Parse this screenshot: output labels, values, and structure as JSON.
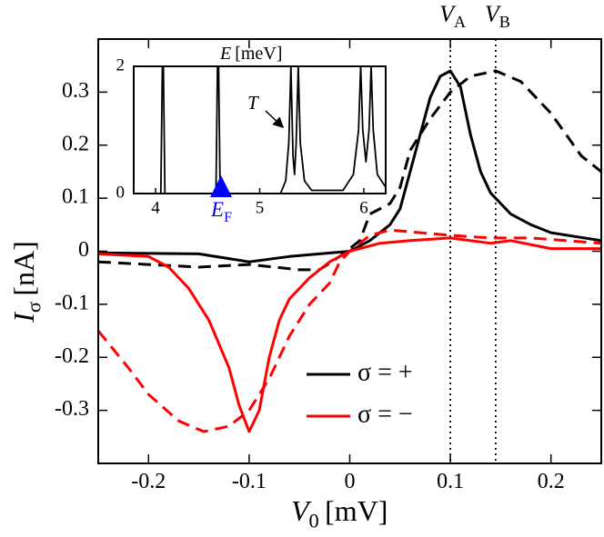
{
  "chart_data": [
    {
      "type": "line",
      "xlabel": {
        "symbol": "V",
        "sub": "0",
        "unit": "[mV]"
      },
      "ylabel": {
        "symbol": "I",
        "sub": "σ",
        "unit": "[nA]"
      },
      "xlim": [
        -0.25,
        0.25
      ],
      "ylim": [
        -0.4,
        0.4
      ],
      "xticks": [
        -0.2,
        -0.1,
        0,
        0.1,
        0.2
      ],
      "yticks": [
        -0.3,
        -0.2,
        -0.1,
        0,
        0.1,
        0.2,
        0.3
      ],
      "legend": "lower center",
      "vlines": [
        {
          "x": 0.1,
          "symbol": "V",
          "sub": "A"
        },
        {
          "x": 0.145,
          "symbol": "V",
          "sub": "B"
        }
      ],
      "series": [
        {
          "name": "σ = +",
          "color": "#000000",
          "x": [
            -0.25,
            -0.15,
            -0.1,
            -0.06,
            -0.03,
            0,
            0.02,
            0.04,
            0.05,
            0.06,
            0.07,
            0.08,
            0.09,
            0.1,
            0.11,
            0.12,
            0.13,
            0.14,
            0.16,
            0.18,
            0.2,
            0.25
          ],
          "values": [
            -0.003,
            -0.005,
            -0.02,
            -0.01,
            -0.005,
            0.0,
            0.02,
            0.05,
            0.08,
            0.15,
            0.22,
            0.29,
            0.33,
            0.34,
            0.31,
            0.22,
            0.15,
            0.11,
            0.07,
            0.05,
            0.035,
            0.02
          ]
        },
        {
          "color": "#000000",
          "dash": true,
          "x": [
            -0.25,
            -0.2,
            -0.15,
            -0.1,
            -0.05,
            -0.03,
            -0.01,
            0.01,
            0.02,
            0.04,
            0.05,
            0.06,
            0.08,
            0.1,
            0.12,
            0.145,
            0.17,
            0.2,
            0.23,
            0.25
          ],
          "values": [
            -0.02,
            -0.025,
            -0.03,
            -0.025,
            -0.035,
            -0.035,
            -0.01,
            0.02,
            0.07,
            0.09,
            0.12,
            0.19,
            0.25,
            0.3,
            0.33,
            0.34,
            0.32,
            0.26,
            0.18,
            0.15
          ]
        },
        {
          "name": "σ = −",
          "color": "#ff0000",
          "x": [
            -0.25,
            -0.2,
            -0.18,
            -0.16,
            -0.14,
            -0.12,
            -0.11,
            -0.1,
            -0.09,
            -0.08,
            -0.07,
            -0.06,
            -0.05,
            -0.04,
            -0.02,
            0,
            0.03,
            0.06,
            0.1,
            0.14,
            0.16,
            0.2,
            0.25
          ],
          "values": [
            -0.005,
            -0.01,
            -0.03,
            -0.07,
            -0.13,
            -0.22,
            -0.29,
            -0.34,
            -0.3,
            -0.2,
            -0.13,
            -0.09,
            -0.07,
            -0.05,
            -0.02,
            0.0,
            0.015,
            0.02,
            0.025,
            0.015,
            0.02,
            0.005,
            0.005
          ]
        },
        {
          "color": "#ff0000",
          "dash": true,
          "x": [
            -0.25,
            -0.22,
            -0.2,
            -0.17,
            -0.145,
            -0.12,
            -0.1,
            -0.08,
            -0.06,
            -0.04,
            -0.02,
            -0.01,
            0,
            0.02,
            0.04,
            0.07,
            0.1,
            0.14,
            0.18,
            0.25
          ],
          "values": [
            -0.15,
            -0.22,
            -0.27,
            -0.32,
            -0.34,
            -0.33,
            -0.3,
            -0.24,
            -0.16,
            -0.1,
            -0.06,
            -0.02,
            0.0,
            0.03,
            0.04,
            0.035,
            0.03,
            0.025,
            0.025,
            0.015
          ]
        }
      ]
    },
    {
      "type": "line",
      "xlabel": {
        "symbol": "E",
        "unit": "[meV]"
      },
      "xlim": [
        3.79,
        6.21
      ],
      "ylim": [
        0,
        2
      ],
      "xticks": [
        4,
        5,
        6
      ],
      "yticks": [
        0,
        2
      ],
      "annotations": [
        {
          "symbol": "T"
        },
        {
          "symbol": "E",
          "sub": "F",
          "color": "#0000ff"
        }
      ],
      "series": [
        {
          "color": "#000000",
          "x": [
            3.79,
            4.05,
            4.065,
            4.075,
            4.09,
            4.58,
            4.595,
            4.605,
            4.62,
            5.2,
            5.25,
            5.28,
            5.3,
            5.32,
            5.335,
            5.35,
            5.37,
            5.39,
            5.43,
            5.5,
            5.8,
            5.9,
            5.95,
            5.97,
            5.99,
            6.02,
            6.05,
            6.07,
            6.09,
            6.13,
            6.21
          ],
          "values": [
            0,
            0,
            2,
            2,
            0,
            0,
            2,
            2,
            0,
            0,
            0.2,
            0.8,
            2,
            0.6,
            0.3,
            0.8,
            2,
            0.8,
            0.2,
            0.05,
            0.05,
            0.3,
            1,
            2,
            1,
            0.5,
            1,
            2,
            1,
            0.3,
            0.1
          ]
        }
      ]
    }
  ]
}
